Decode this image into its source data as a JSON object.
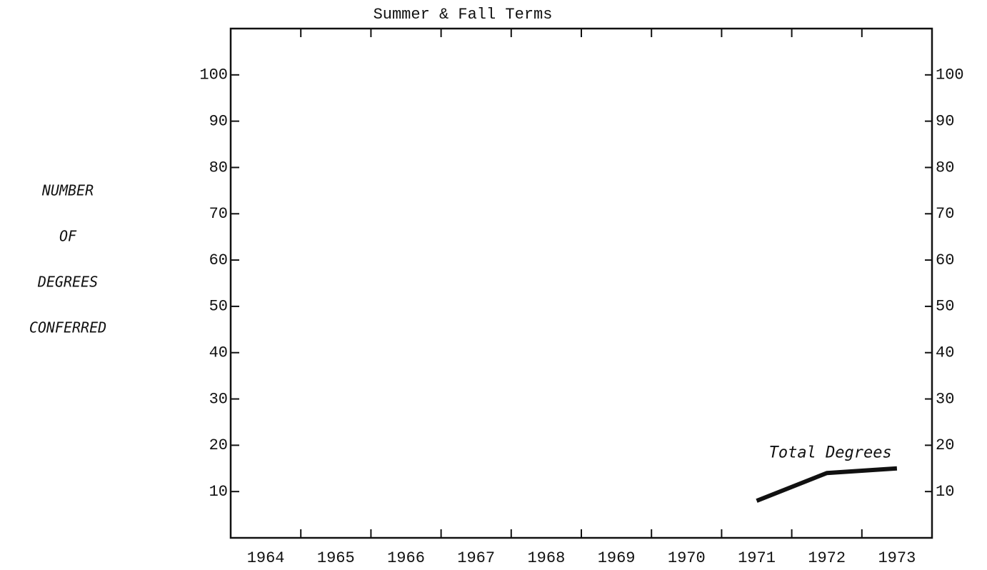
{
  "chart_data": {
    "type": "line",
    "title": "Summer & Fall Terms",
    "y_label": [
      "NUMBER",
      "OF",
      "DEGREES",
      "CONFERRED"
    ],
    "categories": [
      "1964",
      "1965",
      "1966",
      "1967",
      "1968",
      "1969",
      "1970",
      "1971",
      "1972",
      "1973"
    ],
    "series": [
      {
        "name": "Total Degrees",
        "color": "#111111",
        "values": [
          null,
          null,
          null,
          null,
          null,
          null,
          null,
          8,
          14,
          15
        ]
      }
    ],
    "ylim": [
      0,
      110
    ],
    "yticks": [
      10,
      20,
      30,
      40,
      50,
      60,
      70,
      80,
      90,
      100
    ],
    "y2lim": [
      0,
      110
    ],
    "y2ticks": [
      10,
      20,
      30,
      40,
      50,
      60,
      70,
      80,
      90,
      100
    ],
    "grid": false
  }
}
